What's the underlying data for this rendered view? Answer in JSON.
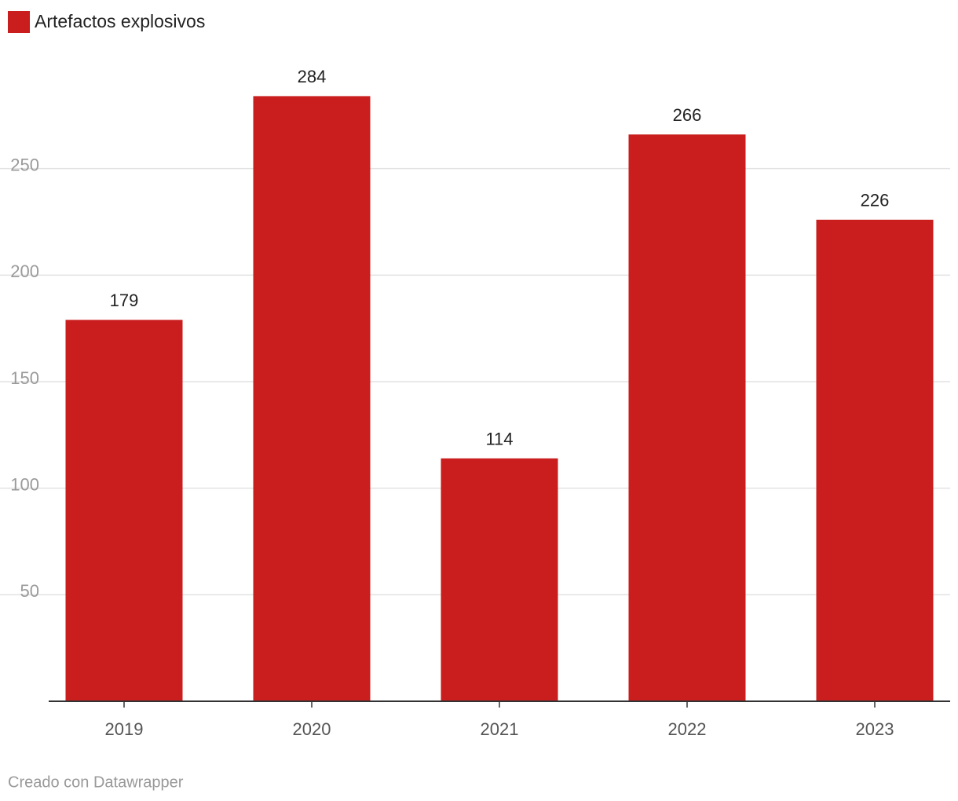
{
  "chart_data": {
    "type": "bar",
    "categories": [
      "2019",
      "2020",
      "2021",
      "2022",
      "2023"
    ],
    "series": [
      {
        "name": "Artefactos explosivos",
        "color": "#c91d1e",
        "values": [
          179,
          284,
          114,
          266,
          226
        ]
      }
    ],
    "ylim": [
      0,
      300
    ],
    "yticks": [
      50,
      100,
      150,
      200,
      250
    ],
    "grid": true,
    "legend": "top-left"
  },
  "footer": "Creado con Datawrapper"
}
